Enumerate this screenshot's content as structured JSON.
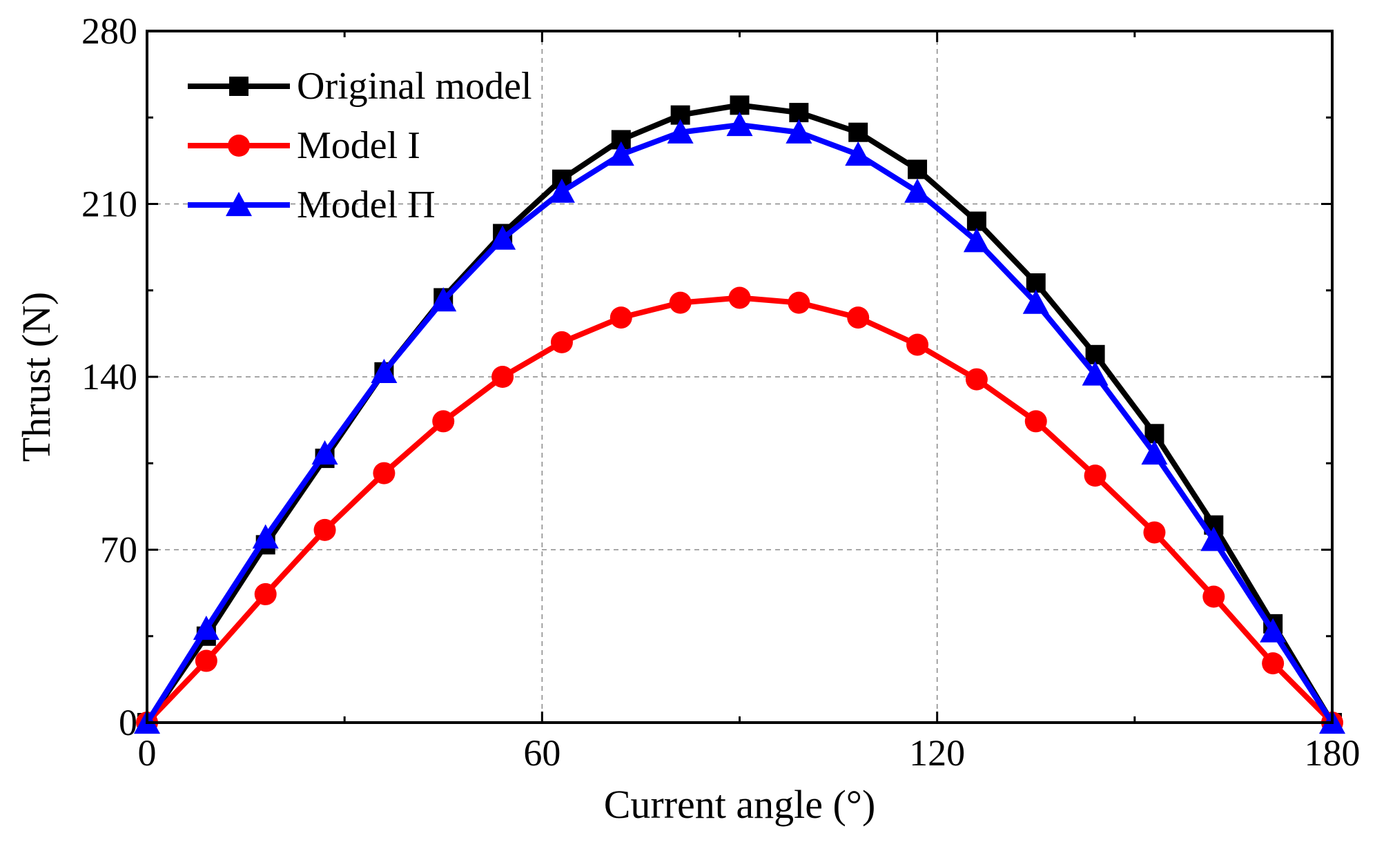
{
  "chart_data": {
    "type": "line",
    "title": "",
    "xlabel": "Current angle (°)",
    "ylabel": "Thrust (N)",
    "xlim": [
      0,
      180
    ],
    "ylim": [
      0,
      280
    ],
    "xticks": [
      0,
      60,
      120,
      180
    ],
    "yticks": [
      0,
      70,
      140,
      210,
      280
    ],
    "x_minor_step": 30,
    "y_minor_step": 35,
    "grid": true,
    "legend_position": "top-left",
    "x": [
      0,
      9,
      18,
      27,
      36,
      45,
      54,
      63,
      72,
      81,
      90,
      99,
      108,
      117,
      126,
      135,
      144,
      153,
      162,
      171,
      180
    ],
    "series": [
      {
        "name": "Original model",
        "color": "#000000",
        "marker": "square",
        "values": [
          0,
          35,
          72,
          107,
          142,
          172,
          198,
          220,
          236,
          246,
          250,
          247,
          239,
          224,
          203,
          178,
          149,
          117,
          80,
          40,
          0
        ]
      },
      {
        "name": "Model I",
        "color": "#ff0000",
        "marker": "circle",
        "values": [
          0,
          25,
          52,
          78,
          101,
          122,
          140,
          154,
          164,
          170,
          172,
          170,
          164,
          153,
          139,
          122,
          100,
          77,
          51,
          24,
          0
        ]
      },
      {
        "name": "Model Π",
        "color": "#0000ff",
        "marker": "triangle",
        "values": [
          0,
          38,
          75,
          109,
          142,
          171,
          196,
          215,
          230,
          239,
          242,
          239,
          230,
          215,
          195,
          170,
          141,
          109,
          74,
          37,
          0
        ]
      }
    ]
  }
}
